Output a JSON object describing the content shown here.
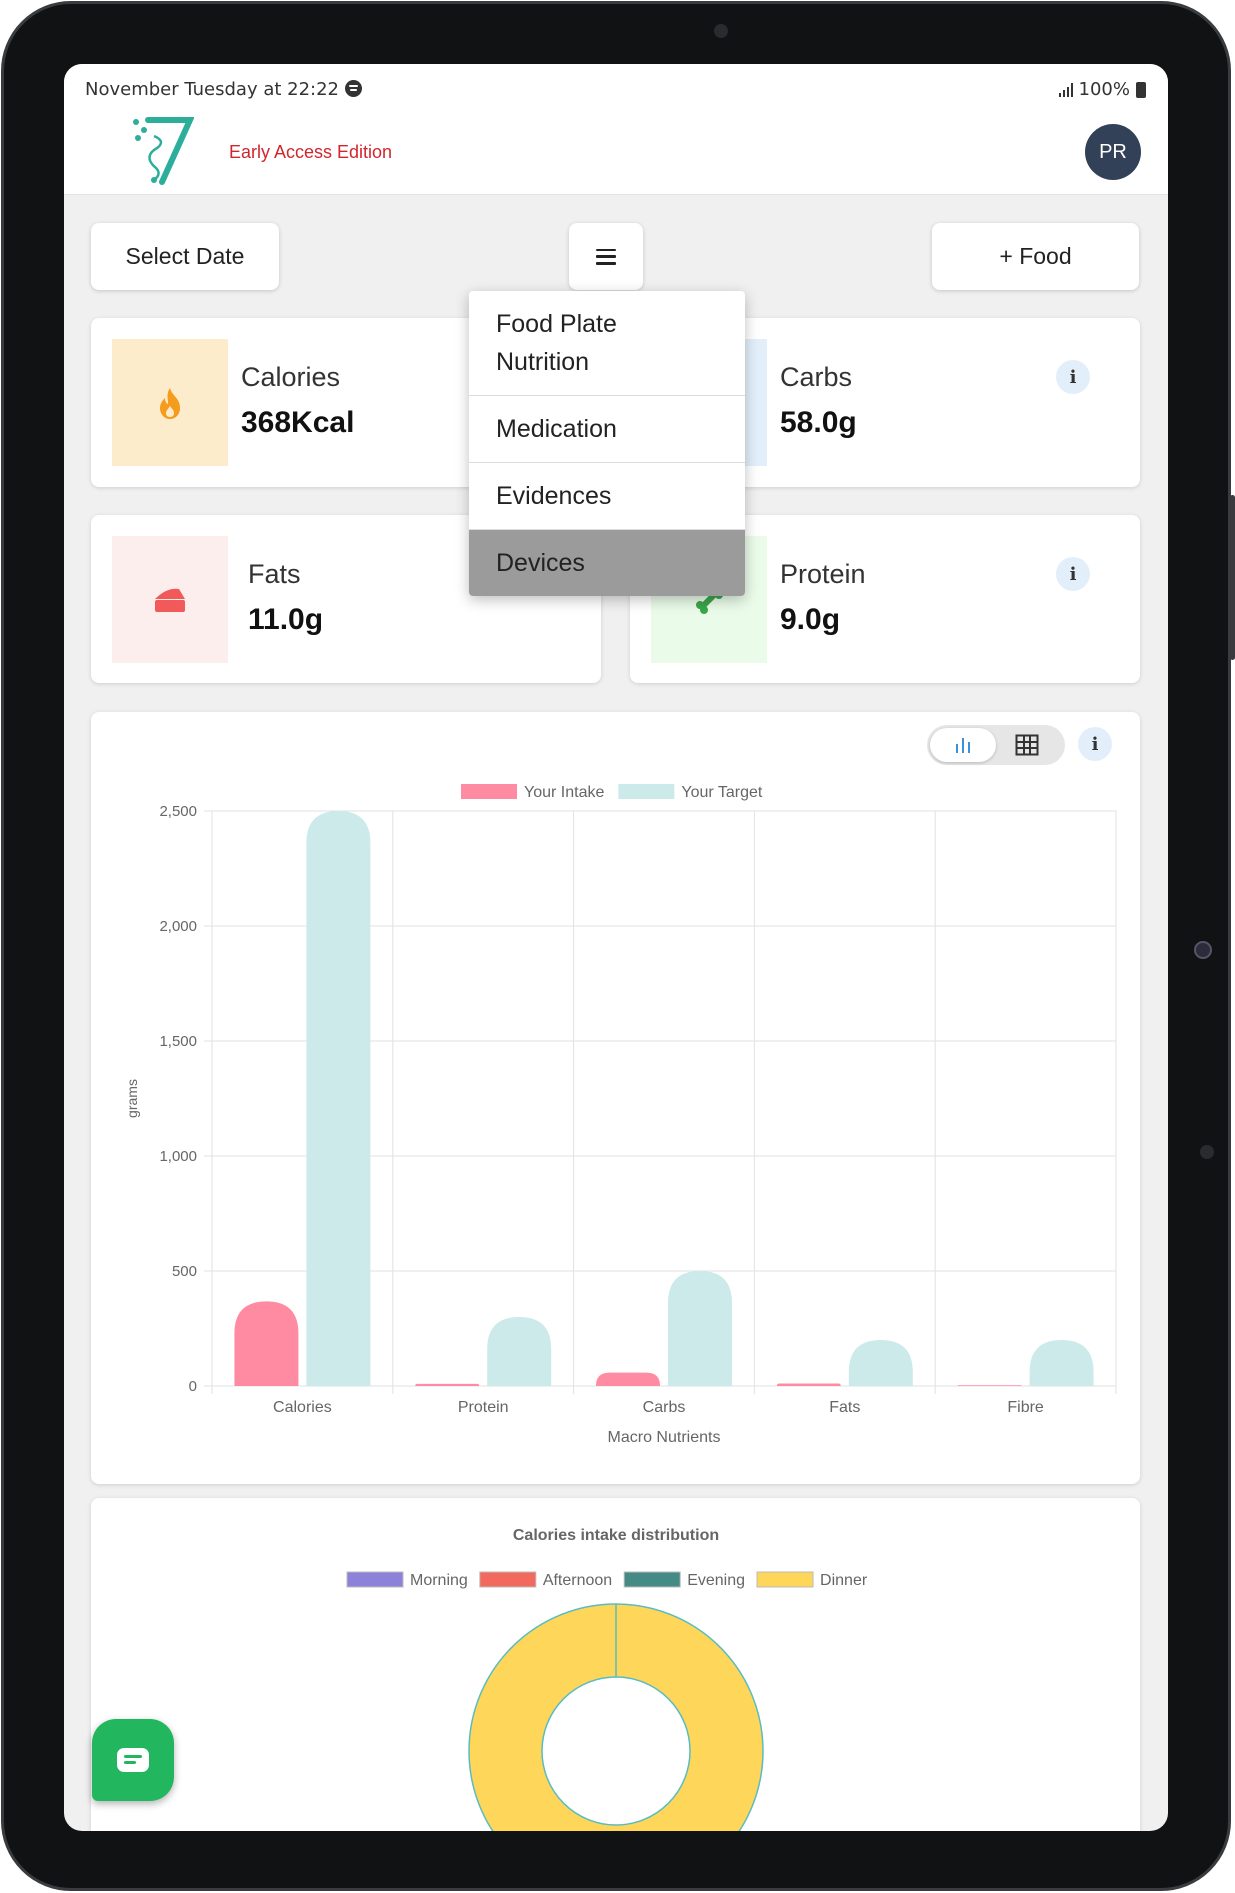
{
  "status_bar": {
    "time": "November Tuesday at 22:22",
    "battery": "100%"
  },
  "header": {
    "edition": "Early Access Edition",
    "avatar_initials": "PR"
  },
  "toolbar": {
    "select_date": "Select Date",
    "add_food": "+ Food"
  },
  "menu": {
    "items": [
      {
        "label_line1": "Food Plate",
        "label_line2": "Nutrition"
      },
      {
        "label": "Medication"
      },
      {
        "label": "Evidences"
      },
      {
        "label": "Devices",
        "active": true
      }
    ]
  },
  "cards": {
    "calories": {
      "title": "Calories",
      "value": "368Kcal",
      "color": "#fdeccc",
      "icon": "flame-icon"
    },
    "carbs": {
      "title": "Carbs",
      "value": "58.0g",
      "color": "#e2effa",
      "icon": "grain-icon"
    },
    "fats": {
      "title": "Fats",
      "value": "11.0g",
      "color": "#fdeeee",
      "icon": "cheese-icon"
    },
    "protein": {
      "title": "Protein",
      "value": "9.0g",
      "color": "#eafbe9",
      "icon": "bone-icon"
    }
  },
  "info_label": "i",
  "chart_data": [
    {
      "type": "bar",
      "categories": [
        "Calories",
        "Protein",
        "Carbs",
        "Fats",
        "Fibre"
      ],
      "series": [
        {
          "name": "Your Intake",
          "values": [
            368,
            9,
            58,
            11,
            3
          ],
          "color": "#ff8ba3"
        },
        {
          "name": "Your Target",
          "values": [
            2500,
            300,
            500,
            200,
            200
          ],
          "color": "#cdeaea"
        }
      ],
      "xlabel": "Macro Nutrients",
      "ylabel": "grams",
      "ylim": [
        0,
        2500
      ],
      "yticks": [
        "0",
        "500",
        "1,000",
        "1,500",
        "2,000",
        "2,500"
      ],
      "grid": true,
      "legend": "top"
    },
    {
      "type": "pie",
      "title": "Calories intake distribution",
      "categories": [
        "Morning",
        "Afternoon",
        "Evening",
        "Dinner"
      ],
      "values": [
        0,
        0,
        0,
        368
      ],
      "colors": [
        "#8d82d9",
        "#f26a5e",
        "#458a85",
        "#fdd65a"
      ],
      "legend": "top"
    }
  ]
}
